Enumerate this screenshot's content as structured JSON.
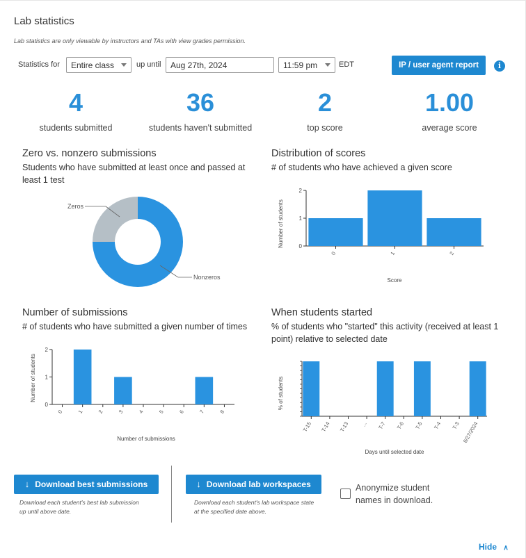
{
  "header": {
    "title": "Lab statistics",
    "note": "Lab statistics are only viewable by instructors and TAs with view grades permission."
  },
  "controls": {
    "statistics_for_label": "Statistics for",
    "statistics_for_value": "Entire class",
    "up_until_label": "up until",
    "date_value": "Aug 27th, 2024",
    "time_value": "11:59 pm",
    "timezone": "EDT",
    "report_button": "IP / user agent report",
    "info_glyph": "i"
  },
  "stats": [
    {
      "value": "4",
      "label": "students submitted"
    },
    {
      "value": "36",
      "label": "students haven't submitted"
    },
    {
      "value": "2",
      "label": "top score"
    },
    {
      "value": "1.00",
      "label": "average score"
    }
  ],
  "charts": {
    "zero_nonzero": {
      "title": "Zero vs. nonzero submissions",
      "subtitle": "Students who have submitted at least once and passed at least 1 test",
      "label_zeros": "Zeros",
      "label_nonzeros": "Nonzeros"
    },
    "distribution": {
      "title": "Distribution of scores",
      "subtitle": "# of students who have achieved a given score",
      "ylabel": "Number of students",
      "xlabel": "Score",
      "yticks": [
        "0",
        "1",
        "2"
      ],
      "xticks": [
        "0",
        "1",
        "2"
      ]
    },
    "submissions": {
      "title": "Number of submissions",
      "subtitle": "# of students who have submitted a given number of times",
      "ylabel": "Number of students",
      "xlabel": "Number of submissions",
      "yticks": [
        "0",
        "1",
        "2"
      ],
      "xticks": [
        "0",
        "1",
        "2",
        "3",
        "4",
        "5",
        "6",
        "7",
        "8"
      ]
    },
    "started": {
      "title": "When students started",
      "subtitle": "% of students who \"started\" this activity (received at least 1 point) relative to selected date",
      "ylabel": "% of students",
      "xlabel": "Days until selected date",
      "xticks": [
        "T-15",
        "T-14",
        "T-13",
        "...",
        "T-7",
        "T-6",
        "T-5",
        "T-4",
        "T-3",
        "8/27/2024"
      ]
    }
  },
  "chart_data": [
    {
      "type": "pie",
      "categories": [
        "Zeros",
        "Nonzeros"
      ],
      "values": [
        1,
        3
      ],
      "colors": [
        "#b5bfc6",
        "#2a93e0"
      ]
    },
    {
      "type": "bar",
      "categories": [
        "0",
        "1",
        "2"
      ],
      "values": [
        1,
        2,
        1
      ],
      "xlabel": "Score",
      "ylabel": "Number of students",
      "ylim": [
        0,
        2
      ]
    },
    {
      "type": "bar",
      "categories": [
        "0",
        "1",
        "2",
        "3",
        "4",
        "5",
        "6",
        "7",
        "8"
      ],
      "values": [
        0,
        2,
        0,
        1,
        0,
        0,
        0,
        1,
        0
      ],
      "xlabel": "Number of submissions",
      "ylabel": "Number of students",
      "ylim": [
        0,
        2
      ]
    },
    {
      "type": "bar",
      "categories": [
        "T-15",
        "T-14",
        "T-13",
        "...",
        "T-7",
        "T-6",
        "T-5",
        "T-4",
        "T-3",
        "8/27/2024"
      ],
      "values": [
        25,
        0,
        0,
        0,
        25,
        0,
        25,
        0,
        0,
        25
      ],
      "xlabel": "Days until selected date",
      "ylabel": "% of students"
    }
  ],
  "downloads": {
    "best_button": "Download best submissions",
    "best_note": "Download each student's best lab submission up until above date.",
    "workspace_button": "Download lab workspaces",
    "workspace_note": "Download each student's lab workspace state at the specified date above.",
    "anonymize_label": "Anonymize student names in download.",
    "icon": "download-arrow-icon"
  },
  "footer": {
    "hide_label": "Hide"
  },
  "colors": {
    "accent": "#1e88d0",
    "bar": "#2a93e0",
    "zeros": "#b5bfc6"
  }
}
